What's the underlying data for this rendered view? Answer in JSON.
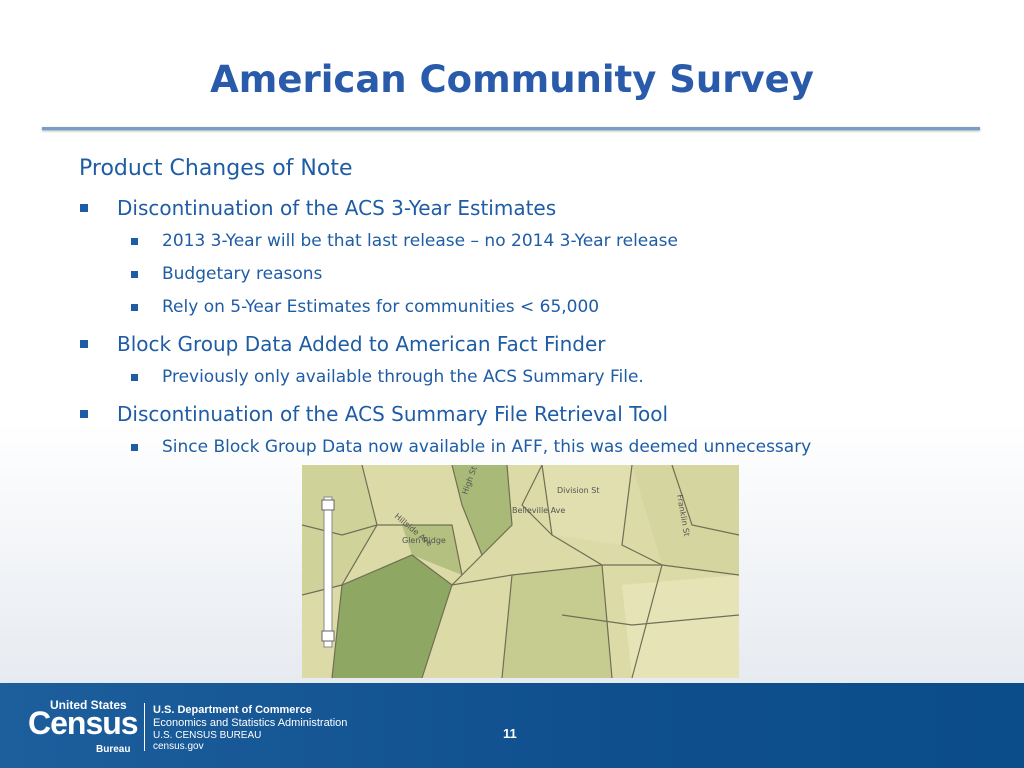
{
  "header": {
    "title": "American Community Survey"
  },
  "body": {
    "heading": "Product Changes of Note",
    "items": [
      {
        "text": "Discontinuation of the ACS 3-Year Estimates",
        "subitems": [
          "2013 3-Year will be that last release – no 2014 3-Year release",
          "Budgetary reasons",
          "Rely on 5-Year Estimates for communities < 65,000"
        ]
      },
      {
        "text": "Block Group Data Added to American Fact Finder",
        "subitems": [
          "Previously only available through the ACS Summary File."
        ]
      },
      {
        "text": "Discontinuation of the ACS Summary File Retrieval Tool",
        "subitems": [
          "Since Block Group Data now available in AFF, this was deemed unnecessary"
        ]
      }
    ]
  },
  "map": {
    "labels": [
      "Division St",
      "Glen Ridge",
      "High St",
      "Hillside Ave",
      "Belleville Ave",
      "Franklin St"
    ]
  },
  "footer": {
    "logo_top": "United States",
    "logo_main": "Census",
    "logo_bottom": "Bureau",
    "lines": [
      "U.S. Department of Commerce",
      "Economics and Statistics Administration",
      "U.S. CENSUS BUREAU",
      "census.gov"
    ],
    "page_number": "11"
  }
}
